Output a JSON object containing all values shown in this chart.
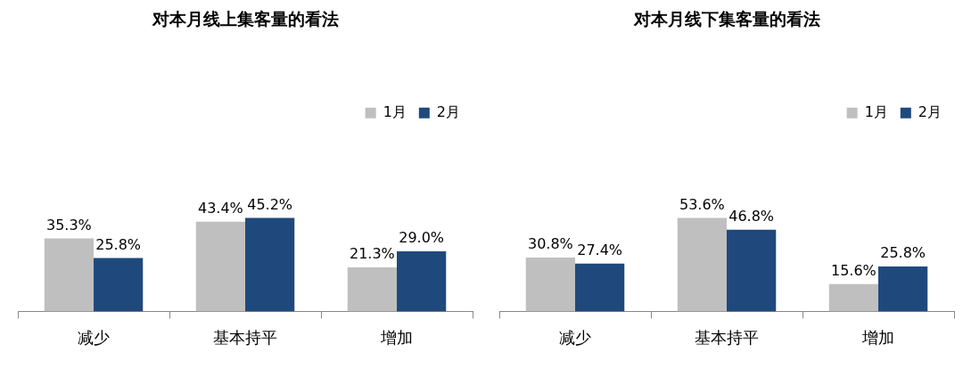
{
  "chart_data": [
    {
      "type": "bar",
      "title": "对本月线上集客量的看法",
      "categories": [
        "减少",
        "基本持平",
        "增加"
      ],
      "data_labels": true,
      "legend": "top right",
      "series": [
        {
          "name": "1月",
          "color": "#bfbfbf",
          "values": [
            35.3,
            43.4,
            21.3
          ],
          "value_labels": [
            "35.3%",
            "43.4%",
            "21.3%"
          ]
        },
        {
          "name": "2月",
          "color": "#1f497d",
          "values": [
            25.8,
            45.2,
            29.0
          ],
          "value_labels": [
            "25.8%",
            "45.2%",
            "29.0%"
          ]
        }
      ]
    },
    {
      "type": "bar",
      "title": "对本月线下集客量的看法",
      "categories": [
        "减少",
        "基本持平",
        "增加"
      ],
      "data_labels": true,
      "legend": "top right",
      "series": [
        {
          "name": "1月",
          "color": "#bfbfbf",
          "values": [
            30.8,
            53.6,
            15.6
          ],
          "value_labels": [
            "30.8%",
            "53.6%",
            "15.6%"
          ]
        },
        {
          "name": "2月",
          "color": "#1f497d",
          "values": [
            27.4,
            46.8,
            25.8
          ],
          "value_labels": [
            "27.4%",
            "46.8%",
            "25.8%"
          ]
        }
      ]
    }
  ]
}
